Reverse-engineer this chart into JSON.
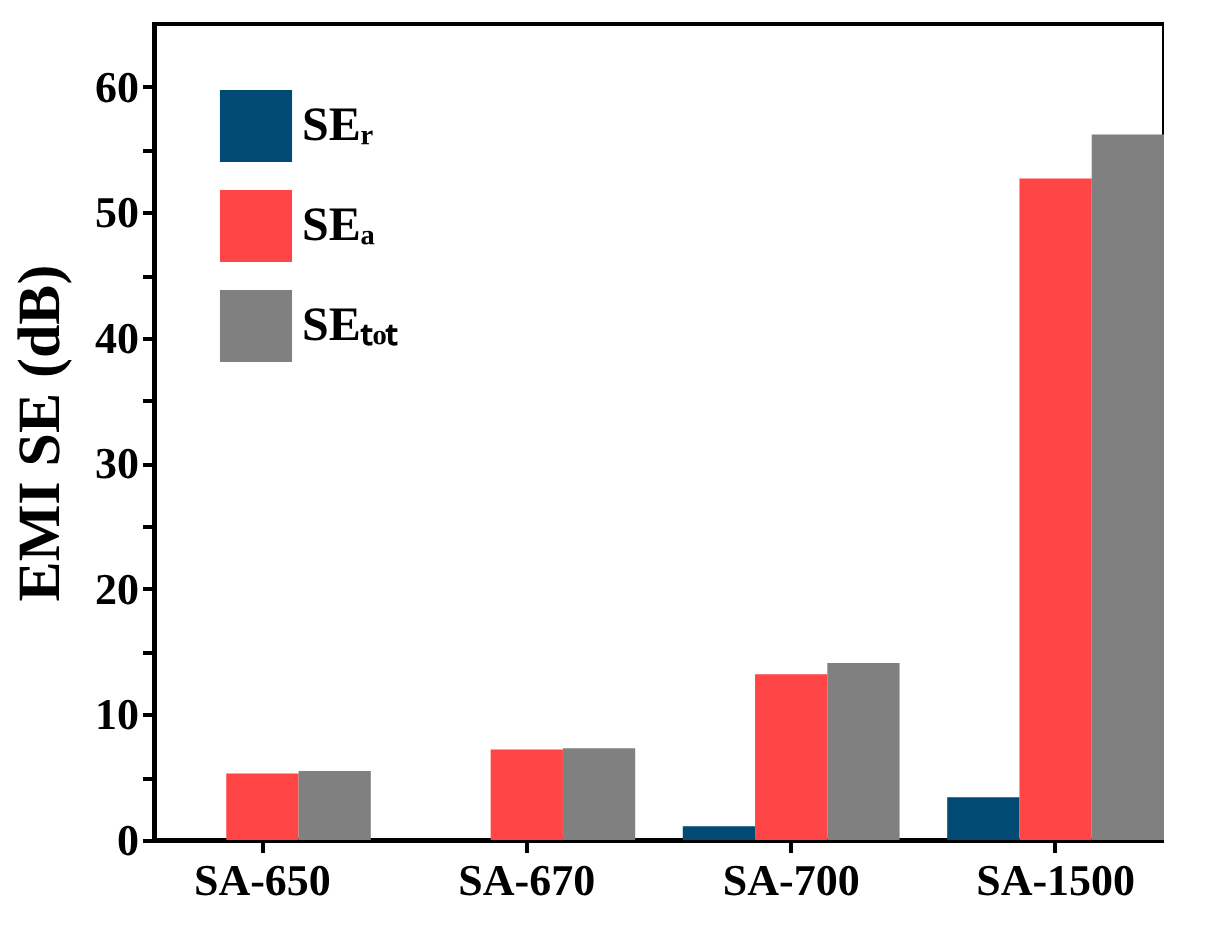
{
  "chart_data": {
    "type": "bar",
    "ylabel": "EMI SE (dB)",
    "categories": [
      "SA-650",
      "SA-670",
      "SA-700",
      "SA-1500"
    ],
    "series": [
      {
        "name": "SEᵣ",
        "color": "#004a74",
        "values": [
          0,
          0,
          1.1,
          3.4
        ]
      },
      {
        "name": "SEₐ",
        "color": "#ff4545",
        "values": [
          5.3,
          7.2,
          13.2,
          52.7
        ]
      },
      {
        "name": "SEₜₒₜ",
        "color": "#808080",
        "values": [
          5.5,
          7.3,
          14.1,
          56.2
        ]
      }
    ],
    "ylim": [
      0,
      65
    ],
    "yticks": [
      0,
      {
        "value": 5,
        "label": null
      },
      10,
      {
        "value": 15,
        "label": null
      },
      20,
      {
        "value": 25,
        "label": null
      },
      30,
      {
        "value": 35,
        "label": null
      },
      40,
      {
        "value": 45,
        "label": null
      },
      50,
      {
        "value": 55,
        "label": null
      },
      60
    ],
    "grid": false,
    "legend": "top left"
  }
}
